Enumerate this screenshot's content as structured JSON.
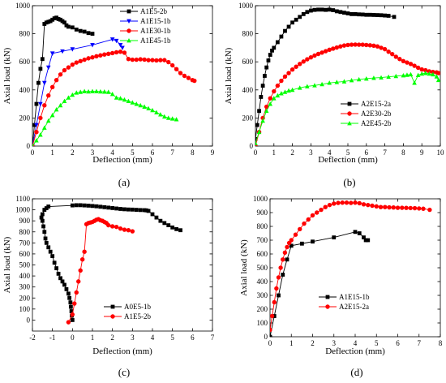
{
  "chart_data": [
    {
      "type": "line",
      "panel_label": "(a)",
      "xlabel": "Deflection (mm)",
      "ylabel": "Axial load (kN)",
      "xlim": [
        0,
        9
      ],
      "ylim": [
        0,
        1000
      ],
      "xticks": [
        "0",
        "1",
        "2",
        "3",
        "4",
        "5",
        "6",
        "7",
        "8",
        "9"
      ],
      "yticks": [
        "0",
        "200",
        "400",
        "600",
        "800",
        "1000"
      ],
      "legend_position": "top-right",
      "series": [
        {
          "name": "A1E5-2b",
          "color": "#000000",
          "marker": "square",
          "x": [
            0,
            0.1,
            0.2,
            0.3,
            0.4,
            0.5,
            0.6,
            0.7,
            0.8,
            0.9,
            1.0,
            1.1,
            1.2,
            1.3,
            1.4,
            1.5,
            1.6,
            1.7,
            1.8,
            2.0,
            2.2,
            2.4,
            2.6,
            2.8,
            3.0
          ],
          "y": [
            0,
            150,
            300,
            450,
            550,
            620,
            870,
            880,
            885,
            890,
            900,
            910,
            915,
            905,
            900,
            890,
            880,
            860,
            850,
            845,
            830,
            820,
            815,
            805,
            800
          ]
        },
        {
          "name": "A1E15-1b",
          "color": "#0000ff",
          "marker": "triangle-down",
          "x": [
            0,
            0.2,
            0.4,
            0.6,
            0.8,
            1.0,
            1.5,
            2.0,
            3.0,
            4.0,
            4.2,
            4.4,
            4.5
          ],
          "y": [
            0,
            150,
            300,
            450,
            560,
            660,
            675,
            690,
            720,
            760,
            750,
            720,
            700
          ]
        },
        {
          "name": "A1E30-1b",
          "color": "#ff0000",
          "marker": "circle",
          "x": [
            0,
            0.2,
            0.4,
            0.6,
            0.8,
            1.0,
            1.2,
            1.4,
            1.6,
            1.8,
            2.0,
            2.2,
            2.4,
            2.6,
            2.8,
            3.0,
            3.2,
            3.4,
            3.6,
            3.8,
            4.0,
            4.2,
            4.4,
            4.6,
            4.8,
            5.0,
            5.2,
            5.4,
            5.6,
            5.8,
            6.0,
            6.2,
            6.4,
            6.6,
            6.8,
            7.0,
            7.2,
            7.4,
            7.6,
            7.8,
            8.0,
            8.1
          ],
          "y": [
            0,
            100,
            200,
            290,
            360,
            420,
            470,
            510,
            540,
            560,
            580,
            595,
            605,
            615,
            625,
            632,
            640,
            646,
            652,
            657,
            662,
            668,
            672,
            665,
            620,
            615,
            615,
            618,
            616,
            612,
            612,
            610,
            612,
            612,
            598,
            575,
            548,
            520,
            500,
            485,
            470,
            465
          ]
        },
        {
          "name": "A1E45-1b",
          "color": "#00ff00",
          "marker": "triangle-up",
          "x": [
            0,
            0.2,
            0.4,
            0.6,
            0.8,
            1.0,
            1.2,
            1.4,
            1.6,
            1.8,
            2.0,
            2.2,
            2.4,
            2.6,
            2.8,
            3.0,
            3.2,
            3.4,
            3.6,
            3.8,
            4.0,
            4.2,
            4.4,
            4.6,
            4.8,
            5.0,
            5.2,
            5.4,
            5.6,
            5.8,
            6.0,
            6.2,
            6.4,
            6.6,
            6.8,
            7.0,
            7.2
          ],
          "y": [
            0,
            40,
            80,
            130,
            180,
            220,
            260,
            290,
            320,
            345,
            365,
            380,
            385,
            390,
            388,
            390,
            390,
            388,
            387,
            385,
            370,
            345,
            340,
            330,
            320,
            310,
            300,
            290,
            280,
            268,
            255,
            240,
            225,
            210,
            200,
            195,
            190
          ]
        }
      ]
    },
    {
      "type": "line",
      "panel_label": "(b)",
      "xlabel": "Deflection (mm)",
      "ylabel": "Axial load (kN)",
      "xlim": [
        0,
        10
      ],
      "ylim": [
        0,
        1000
      ],
      "xticks": [
        "0",
        "1",
        "2",
        "3",
        "4",
        "5",
        "6",
        "7",
        "8",
        "9",
        "10"
      ],
      "yticks": [
        "0",
        "200",
        "400",
        "600",
        "800",
        "1000"
      ],
      "legend_position": "bottom-center",
      "series": [
        {
          "name": "A2E15-2a",
          "color": "#000000",
          "marker": "square",
          "x": [
            0,
            0.1,
            0.2,
            0.3,
            0.4,
            0.5,
            0.6,
            0.7,
            0.8,
            0.9,
            1.0,
            1.2,
            1.4,
            1.6,
            1.8,
            2.0,
            2.2,
            2.4,
            2.6,
            2.8,
            3.0,
            3.2,
            3.4,
            3.6,
            3.8,
            4.0,
            4.2,
            4.4,
            4.6,
            4.8,
            5.0,
            5.2,
            5.4,
            5.6,
            5.8,
            6.0,
            6.2,
            6.4,
            6.6,
            6.8,
            7.0,
            7.2,
            7.5
          ],
          "y": [
            50,
            150,
            250,
            350,
            430,
            500,
            560,
            610,
            650,
            680,
            700,
            740,
            780,
            820,
            850,
            880,
            900,
            920,
            940,
            955,
            965,
            970,
            972,
            972,
            970,
            972,
            968,
            960,
            955,
            950,
            945,
            940,
            940,
            938,
            937,
            935,
            935,
            934,
            933,
            932,
            930,
            928,
            920
          ]
        },
        {
          "name": "A2E30-2b",
          "color": "#ff0000",
          "marker": "circle",
          "x": [
            0,
            0.2,
            0.4,
            0.6,
            0.8,
            1.0,
            1.2,
            1.4,
            1.6,
            1.8,
            2.0,
            2.2,
            2.4,
            2.6,
            2.8,
            3.0,
            3.2,
            3.4,
            3.6,
            3.8,
            4.0,
            4.2,
            4.4,
            4.6,
            4.8,
            5.0,
            5.2,
            5.4,
            5.6,
            5.8,
            6.0,
            6.2,
            6.4,
            6.6,
            6.8,
            7.0,
            7.2,
            7.4,
            7.6,
            7.8,
            8.0,
            8.2,
            8.4,
            8.6,
            8.8,
            9.0,
            9.2,
            9.4,
            9.6,
            9.8,
            9.9
          ],
          "y": [
            0,
            100,
            200,
            280,
            340,
            390,
            430,
            465,
            495,
            520,
            545,
            565,
            585,
            602,
            618,
            632,
            645,
            656,
            666,
            676,
            686,
            694,
            702,
            710,
            716,
            720,
            722,
            723,
            722,
            722,
            720,
            718,
            715,
            710,
            700,
            690,
            672,
            655,
            636,
            620,
            605,
            595,
            585,
            572,
            558,
            546,
            540,
            532,
            528,
            525,
            520
          ]
        },
        {
          "name": "A2E45-2b",
          "color": "#00ff00",
          "marker": "triangle-up",
          "x": [
            0,
            0.2,
            0.4,
            0.6,
            0.8,
            1.0,
            1.2,
            1.4,
            1.6,
            1.8,
            2.0,
            2.4,
            2.8,
            3.2,
            3.6,
            4.0,
            4.4,
            4.8,
            5.2,
            5.6,
            6.0,
            6.4,
            6.8,
            7.2,
            7.6,
            8.0,
            8.2,
            8.4,
            8.6,
            8.8,
            9.0,
            9.2,
            9.4,
            9.6,
            9.8,
            9.9
          ],
          "y": [
            20,
            100,
            180,
            250,
            300,
            340,
            360,
            375,
            385,
            395,
            400,
            415,
            425,
            432,
            440,
            450,
            455,
            460,
            468,
            475,
            480,
            485,
            488,
            493,
            498,
            503,
            507,
            510,
            450,
            505,
            515,
            520,
            515,
            510,
            495,
            470
          ]
        }
      ]
    },
    {
      "type": "line",
      "panel_label": "(c)",
      "xlabel": "Deflection (mm)",
      "ylabel": "Axial load (kN)",
      "xlim": [
        -2,
        7
      ],
      "ylim": [
        -100,
        1100
      ],
      "xticks": [
        "-2",
        "-1",
        "0",
        "1",
        "2",
        "3",
        "4",
        "5",
        "6",
        "7"
      ],
      "yticks": [
        "0",
        "100",
        "200",
        "300",
        "400",
        "500",
        "600",
        "700",
        "800",
        "900",
        "1000",
        "1100"
      ],
      "legend_position": "bottom-right",
      "series": [
        {
          "name": "A0E5-1b",
          "color": "#000000",
          "marker": "square",
          "x": [
            0,
            -0.03,
            -0.05,
            -0.08,
            -0.1,
            -0.15,
            -0.2,
            -0.3,
            -0.4,
            -0.5,
            -0.6,
            -0.7,
            -0.8,
            -0.9,
            -1.0,
            -1.1,
            -1.2,
            -1.3,
            -1.35,
            -1.4,
            -1.45,
            -1.5,
            -1.55,
            -1.5,
            -1.4,
            -1.3,
            -1.2,
            0.0,
            0.2,
            0.4,
            0.6,
            0.8,
            1.0,
            1.2,
            1.4,
            1.6,
            1.8,
            2.0,
            2.2,
            2.4,
            2.6,
            2.8,
            3.0,
            3.2,
            3.4,
            3.6,
            3.7,
            3.8,
            4.0,
            4.2,
            4.4,
            4.6,
            4.8,
            5.0,
            5.2,
            5.4
          ],
          "y": [
            0,
            40,
            80,
            120,
            160,
            200,
            240,
            280,
            320,
            350,
            380,
            420,
            470,
            520,
            580,
            620,
            660,
            700,
            740,
            800,
            850,
            900,
            930,
            960,
            1000,
            1015,
            1030,
            1040,
            1042,
            1042,
            1040,
            1038,
            1035,
            1032,
            1028,
            1024,
            1020,
            1016,
            1012,
            1008,
            1005,
            1003,
            1002,
            1000,
            998,
            997,
            995,
            990,
            960,
            930,
            900,
            880,
            860,
            840,
            825,
            815
          ]
        },
        {
          "name": "A1E5-2b",
          "color": "#ff0000",
          "marker": "circle",
          "x": [
            -0.2,
            0,
            0.1,
            0.2,
            0.3,
            0.4,
            0.5,
            0.6,
            0.7,
            0.8,
            0.9,
            1.0,
            1.1,
            1.2,
            1.3,
            1.4,
            1.5,
            1.6,
            1.7,
            1.8,
            2.0,
            2.2,
            2.4,
            2.6,
            2.8,
            3.0
          ],
          "y": [
            -20,
            50,
            150,
            250,
            350,
            450,
            550,
            620,
            870,
            880,
            885,
            890,
            900,
            910,
            915,
            905,
            900,
            890,
            880,
            860,
            850,
            845,
            830,
            820,
            815,
            805
          ]
        }
      ]
    },
    {
      "type": "line",
      "panel_label": "(d)",
      "xlabel": "Deflection (mm)",
      "ylabel": "Axial load (kN)",
      "xlim": [
        0,
        8
      ],
      "ylim": [
        0,
        1000
      ],
      "xticks": [
        "0",
        "1",
        "2",
        "3",
        "4",
        "5",
        "6",
        "7",
        "8"
      ],
      "yticks": [
        "0",
        "100",
        "200",
        "300",
        "400",
        "500",
        "600",
        "700",
        "800",
        "900",
        "1000"
      ],
      "legend_position": "bottom-center",
      "series": [
        {
          "name": "A1E15-1b",
          "color": "#000000",
          "marker": "square",
          "x": [
            0,
            0.2,
            0.4,
            0.6,
            0.8,
            1.0,
            1.5,
            2.0,
            3.0,
            4.0,
            4.2,
            4.4,
            4.5,
            4.6
          ],
          "y": [
            0,
            150,
            300,
            450,
            560,
            660,
            675,
            690,
            720,
            760,
            750,
            720,
            700,
            700
          ]
        },
        {
          "name": "A2E15-2a",
          "color": "#ff0000",
          "marker": "circle",
          "x": [
            0,
            0.1,
            0.2,
            0.3,
            0.4,
            0.5,
            0.6,
            0.7,
            0.8,
            0.9,
            1.0,
            1.2,
            1.4,
            1.6,
            1.8,
            2.0,
            2.2,
            2.4,
            2.6,
            2.8,
            3.0,
            3.2,
            3.4,
            3.6,
            3.8,
            4.0,
            4.2,
            4.4,
            4.6,
            4.8,
            5.0,
            5.2,
            5.4,
            5.6,
            5.8,
            6.0,
            6.2,
            6.4,
            6.6,
            6.8,
            7.0,
            7.2,
            7.5
          ],
          "y": [
            50,
            150,
            250,
            350,
            430,
            500,
            560,
            610,
            650,
            680,
            700,
            740,
            780,
            820,
            850,
            880,
            900,
            920,
            940,
            955,
            965,
            970,
            972,
            972,
            970,
            972,
            968,
            960,
            955,
            950,
            945,
            940,
            940,
            938,
            937,
            935,
            935,
            934,
            933,
            932,
            930,
            928,
            920
          ]
        }
      ]
    }
  ]
}
